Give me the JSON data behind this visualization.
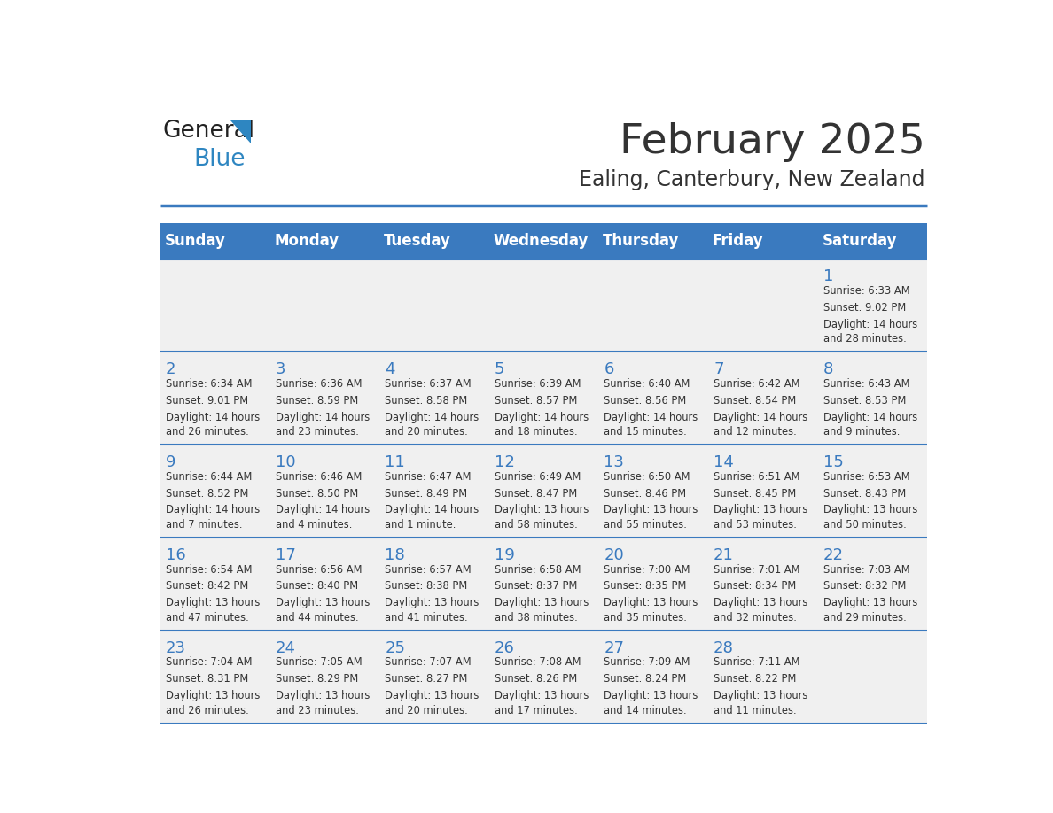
{
  "title": "February 2025",
  "subtitle": "Ealing, Canterbury, New Zealand",
  "header_bg": "#3a7abf",
  "header_text_color": "#ffffff",
  "cell_bg_light": "#f0f0f0",
  "day_number_color": "#3a7abf",
  "body_text_color": "#333333",
  "days_of_week": [
    "Sunday",
    "Monday",
    "Tuesday",
    "Wednesday",
    "Thursday",
    "Friday",
    "Saturday"
  ],
  "weeks": [
    [
      {
        "day": null,
        "sunrise": null,
        "sunset": null,
        "daylight": null
      },
      {
        "day": null,
        "sunrise": null,
        "sunset": null,
        "daylight": null
      },
      {
        "day": null,
        "sunrise": null,
        "sunset": null,
        "daylight": null
      },
      {
        "day": null,
        "sunrise": null,
        "sunset": null,
        "daylight": null
      },
      {
        "day": null,
        "sunrise": null,
        "sunset": null,
        "daylight": null
      },
      {
        "day": null,
        "sunrise": null,
        "sunset": null,
        "daylight": null
      },
      {
        "day": 1,
        "sunrise": "6:33 AM",
        "sunset": "9:02 PM",
        "daylight": "14 hours and 28 minutes."
      }
    ],
    [
      {
        "day": 2,
        "sunrise": "6:34 AM",
        "sunset": "9:01 PM",
        "daylight": "14 hours and 26 minutes."
      },
      {
        "day": 3,
        "sunrise": "6:36 AM",
        "sunset": "8:59 PM",
        "daylight": "14 hours and 23 minutes."
      },
      {
        "day": 4,
        "sunrise": "6:37 AM",
        "sunset": "8:58 PM",
        "daylight": "14 hours and 20 minutes."
      },
      {
        "day": 5,
        "sunrise": "6:39 AM",
        "sunset": "8:57 PM",
        "daylight": "14 hours and 18 minutes."
      },
      {
        "day": 6,
        "sunrise": "6:40 AM",
        "sunset": "8:56 PM",
        "daylight": "14 hours and 15 minutes."
      },
      {
        "day": 7,
        "sunrise": "6:42 AM",
        "sunset": "8:54 PM",
        "daylight": "14 hours and 12 minutes."
      },
      {
        "day": 8,
        "sunrise": "6:43 AM",
        "sunset": "8:53 PM",
        "daylight": "14 hours and 9 minutes."
      }
    ],
    [
      {
        "day": 9,
        "sunrise": "6:44 AM",
        "sunset": "8:52 PM",
        "daylight": "14 hours and 7 minutes."
      },
      {
        "day": 10,
        "sunrise": "6:46 AM",
        "sunset": "8:50 PM",
        "daylight": "14 hours and 4 minutes."
      },
      {
        "day": 11,
        "sunrise": "6:47 AM",
        "sunset": "8:49 PM",
        "daylight": "14 hours and 1 minute."
      },
      {
        "day": 12,
        "sunrise": "6:49 AM",
        "sunset": "8:47 PM",
        "daylight": "13 hours and 58 minutes."
      },
      {
        "day": 13,
        "sunrise": "6:50 AM",
        "sunset": "8:46 PM",
        "daylight": "13 hours and 55 minutes."
      },
      {
        "day": 14,
        "sunrise": "6:51 AM",
        "sunset": "8:45 PM",
        "daylight": "13 hours and 53 minutes."
      },
      {
        "day": 15,
        "sunrise": "6:53 AM",
        "sunset": "8:43 PM",
        "daylight": "13 hours and 50 minutes."
      }
    ],
    [
      {
        "day": 16,
        "sunrise": "6:54 AM",
        "sunset": "8:42 PM",
        "daylight": "13 hours and 47 minutes."
      },
      {
        "day": 17,
        "sunrise": "6:56 AM",
        "sunset": "8:40 PM",
        "daylight": "13 hours and 44 minutes."
      },
      {
        "day": 18,
        "sunrise": "6:57 AM",
        "sunset": "8:38 PM",
        "daylight": "13 hours and 41 minutes."
      },
      {
        "day": 19,
        "sunrise": "6:58 AM",
        "sunset": "8:37 PM",
        "daylight": "13 hours and 38 minutes."
      },
      {
        "day": 20,
        "sunrise": "7:00 AM",
        "sunset": "8:35 PM",
        "daylight": "13 hours and 35 minutes."
      },
      {
        "day": 21,
        "sunrise": "7:01 AM",
        "sunset": "8:34 PM",
        "daylight": "13 hours and 32 minutes."
      },
      {
        "day": 22,
        "sunrise": "7:03 AM",
        "sunset": "8:32 PM",
        "daylight": "13 hours and 29 minutes."
      }
    ],
    [
      {
        "day": 23,
        "sunrise": "7:04 AM",
        "sunset": "8:31 PM",
        "daylight": "13 hours and 26 minutes."
      },
      {
        "day": 24,
        "sunrise": "7:05 AM",
        "sunset": "8:29 PM",
        "daylight": "13 hours and 23 minutes."
      },
      {
        "day": 25,
        "sunrise": "7:07 AM",
        "sunset": "8:27 PM",
        "daylight": "13 hours and 20 minutes."
      },
      {
        "day": 26,
        "sunrise": "7:08 AM",
        "sunset": "8:26 PM",
        "daylight": "13 hours and 17 minutes."
      },
      {
        "day": 27,
        "sunrise": "7:09 AM",
        "sunset": "8:24 PM",
        "daylight": "13 hours and 14 minutes."
      },
      {
        "day": 28,
        "sunrise": "7:11 AM",
        "sunset": "8:22 PM",
        "daylight": "13 hours and 11 minutes."
      },
      {
        "day": null,
        "sunrise": null,
        "sunset": null,
        "daylight": null
      }
    ]
  ],
  "logo_text1": "General",
  "logo_text2": "Blue",
  "logo_text1_color": "#222222",
  "logo_text2_color": "#2e86c1",
  "logo_triangle_color": "#2e86c1",
  "line_color": "#3a7abf",
  "separator_line_color": "#3a7abf"
}
